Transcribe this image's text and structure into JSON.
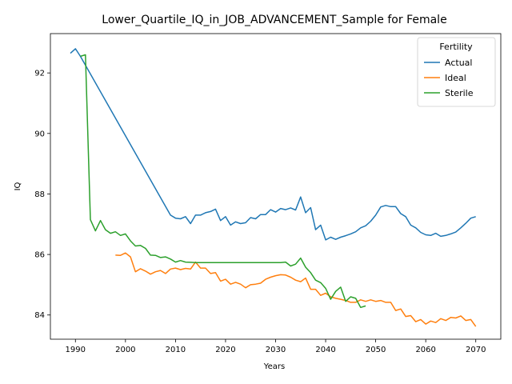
{
  "chart_data": {
    "type": "line",
    "title": "Lower_Quartile_IQ_in_JOB_ADVANCEMENT_Sample for Female",
    "xlabel": "Years",
    "ylabel": "IQ",
    "xlim": [
      1985,
      2075
    ],
    "ylim": [
      83.2,
      93.3
    ],
    "xticks": [
      1990,
      2000,
      2010,
      2020,
      2030,
      2040,
      2050,
      2060,
      2070
    ],
    "yticks": [
      84,
      86,
      88,
      90,
      92
    ],
    "grid": false,
    "legend": {
      "title": "Fertility",
      "position": "top-right"
    },
    "series": [
      {
        "name": "Actual",
        "color": "#1f77b4",
        "x": [
          1989,
          1990,
          1991,
          2009,
          2010,
          2011,
          2012,
          2013,
          2014,
          2015,
          2016,
          2017,
          2018,
          2019,
          2020,
          2021,
          2022,
          2023,
          2024,
          2025,
          2026,
          2027,
          2028,
          2029,
          2030,
          2031,
          2032,
          2033,
          2034,
          2035,
          2036,
          2037,
          2038,
          2039,
          2040,
          2041,
          2042,
          2043,
          2044,
          2045,
          2046,
          2047,
          2048,
          2049,
          2050,
          2051,
          2052,
          2053,
          2054,
          2055,
          2056,
          2057,
          2058,
          2059,
          2060,
          2061,
          2062,
          2063,
          2064,
          2065,
          2066,
          2067,
          2068,
          2069,
          2070
        ],
        "y": [
          92.65,
          92.8,
          92.55,
          87.3,
          87.2,
          87.18,
          87.25,
          87.02,
          87.3,
          87.3,
          87.38,
          87.42,
          87.5,
          87.12,
          87.25,
          86.97,
          87.08,
          87.02,
          87.05,
          87.22,
          87.18,
          87.32,
          87.32,
          87.48,
          87.4,
          87.52,
          87.48,
          87.54,
          87.47,
          87.9,
          87.38,
          87.55,
          86.82,
          86.97,
          86.48,
          86.57,
          86.5,
          86.57,
          86.62,
          86.68,
          86.75,
          86.88,
          86.95,
          87.1,
          87.3,
          87.57,
          87.62,
          87.58,
          87.58,
          87.35,
          87.25,
          86.97,
          86.88,
          86.73,
          86.65,
          86.63,
          86.7,
          86.6,
          86.63,
          86.68,
          86.74,
          86.88,
          87.03,
          87.2,
          87.25
        ]
      },
      {
        "name": "Ideal",
        "color": "#ff7f0e",
        "x": [
          1998,
          1999,
          2000,
          2001,
          2002,
          2003,
          2004,
          2005,
          2006,
          2007,
          2008,
          2009,
          2010,
          2011,
          2012,
          2013,
          2014,
          2015,
          2016,
          2017,
          2018,
          2019,
          2020,
          2021,
          2022,
          2023,
          2024,
          2025,
          2026,
          2027,
          2028,
          2029,
          2030,
          2031,
          2032,
          2033,
          2034,
          2035,
          2036,
          2037,
          2038,
          2039,
          2040,
          2041,
          2042,
          2043,
          2044,
          2045,
          2046,
          2047,
          2048,
          2049,
          2050,
          2051,
          2052,
          2053,
          2054,
          2055,
          2056,
          2057,
          2058,
          2059,
          2060,
          2061,
          2062,
          2063,
          2064,
          2065,
          2066,
          2067,
          2068,
          2069,
          2070
        ],
        "y": [
          85.98,
          85.97,
          86.05,
          85.92,
          85.43,
          85.53,
          85.45,
          85.35,
          85.43,
          85.47,
          85.37,
          85.52,
          85.55,
          85.5,
          85.54,
          85.52,
          85.75,
          85.55,
          85.55,
          85.37,
          85.4,
          85.12,
          85.18,
          85.02,
          85.08,
          85.02,
          84.9,
          85.0,
          85.02,
          85.05,
          85.18,
          85.25,
          85.3,
          85.33,
          85.32,
          85.25,
          85.15,
          85.1,
          85.22,
          84.85,
          84.85,
          84.65,
          84.72,
          84.6,
          84.55,
          84.52,
          84.48,
          84.42,
          84.42,
          84.5,
          84.45,
          84.5,
          84.45,
          84.48,
          84.42,
          84.42,
          84.15,
          84.2,
          83.95,
          83.98,
          83.78,
          83.85,
          83.7,
          83.8,
          83.75,
          83.88,
          83.82,
          83.92,
          83.9,
          83.97,
          83.82,
          83.85,
          83.62
        ]
      },
      {
        "name": "Sterile",
        "color": "#2ca02c",
        "x": [
          1991,
          1992,
          1993,
          1994,
          1995,
          1996,
          1997,
          1998,
          1999,
          2000,
          2001,
          2002,
          2003,
          2004,
          2005,
          2006,
          2007,
          2008,
          2009,
          2010,
          2011,
          2012,
          2013,
          2014,
          2015,
          2020,
          2025,
          2030,
          2031,
          2032,
          2033,
          2034,
          2035,
          2036,
          2037,
          2038,
          2039,
          2040,
          2041,
          2042,
          2043,
          2044,
          2045,
          2046,
          2047,
          2048
        ],
        "y": [
          92.55,
          92.6,
          87.15,
          86.78,
          87.12,
          86.82,
          86.7,
          86.75,
          86.63,
          86.68,
          86.45,
          86.28,
          86.3,
          86.2,
          85.98,
          85.97,
          85.9,
          85.92,
          85.85,
          85.75,
          85.8,
          85.75,
          85.74,
          85.73,
          85.73,
          85.73,
          85.73,
          85.73,
          85.73,
          85.75,
          85.62,
          85.68,
          85.88,
          85.58,
          85.4,
          85.15,
          85.07,
          84.88,
          84.52,
          84.78,
          84.92,
          84.45,
          84.6,
          84.55,
          84.25,
          84.3
        ]
      }
    ]
  }
}
